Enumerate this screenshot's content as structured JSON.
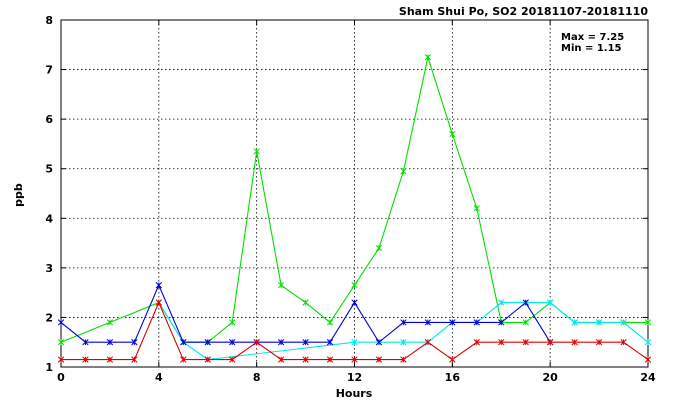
{
  "chart_data": {
    "type": "line",
    "title": "Sham Shui Po, SO2 20181107-20181110",
    "xlabel": "Hours",
    "ylabel": "ppb",
    "xlim": [
      0,
      24
    ],
    "ylim": [
      1,
      8
    ],
    "x_ticks": [
      0,
      4,
      8,
      12,
      16,
      20,
      24
    ],
    "y_ticks": [
      1,
      2,
      3,
      4,
      5,
      6,
      7,
      8
    ],
    "grid": true,
    "annotations": [
      "Max = 7.25",
      "Min = 1.15"
    ],
    "series": [
      {
        "color": "#00e000",
        "x": [
          0,
          2,
          4,
          5,
          6,
          7,
          8,
          9,
          10,
          11,
          12,
          13,
          14,
          15,
          16,
          17,
          18,
          19,
          20,
          21,
          22,
          23,
          24
        ],
        "values": [
          1.5,
          1.9,
          2.3,
          1.5,
          1.5,
          1.9,
          5.35,
          2.65,
          2.3,
          1.9,
          2.65,
          3.4,
          4.95,
          7.25,
          5.7,
          4.2,
          1.9,
          1.9,
          2.3,
          1.9,
          1.9,
          1.9,
          1.9
        ]
      },
      {
        "color": "#00e8e8",
        "x": [
          4,
          5,
          6,
          12,
          13,
          14,
          15,
          16,
          17,
          18,
          19,
          20,
          21,
          22,
          23,
          24
        ],
        "values": [
          2.3,
          1.5,
          1.15,
          1.5,
          1.5,
          1.5,
          1.5,
          1.9,
          1.9,
          2.3,
          2.3,
          2.3,
          1.9,
          1.9,
          1.9,
          1.5
        ]
      },
      {
        "color": "#0000e0",
        "x": [
          0,
          1,
          2,
          3,
          4,
          5,
          6,
          7,
          8,
          9,
          10,
          11,
          12,
          13,
          14,
          15,
          16,
          17,
          18,
          19,
          20
        ],
        "values": [
          1.9,
          1.5,
          1.5,
          1.5,
          2.65,
          1.5,
          1.5,
          1.5,
          1.5,
          1.5,
          1.5,
          1.5,
          2.3,
          1.5,
          1.9,
          1.9,
          1.9,
          1.9,
          1.9,
          2.3,
          1.5
        ]
      },
      {
        "color": "#e00000",
        "x": [
          0,
          1,
          2,
          3,
          4,
          5,
          6,
          7,
          8,
          9,
          10,
          11,
          12,
          13,
          14,
          15,
          16,
          17,
          18,
          19,
          20,
          21,
          22,
          23,
          24
        ],
        "values": [
          1.15,
          1.15,
          1.15,
          1.15,
          2.3,
          1.15,
          1.15,
          1.15,
          1.5,
          1.15,
          1.15,
          1.15,
          1.15,
          1.15,
          1.15,
          1.5,
          1.15,
          1.5,
          1.5,
          1.5,
          1.5,
          1.5,
          1.5,
          1.5,
          1.15
        ]
      }
    ]
  }
}
